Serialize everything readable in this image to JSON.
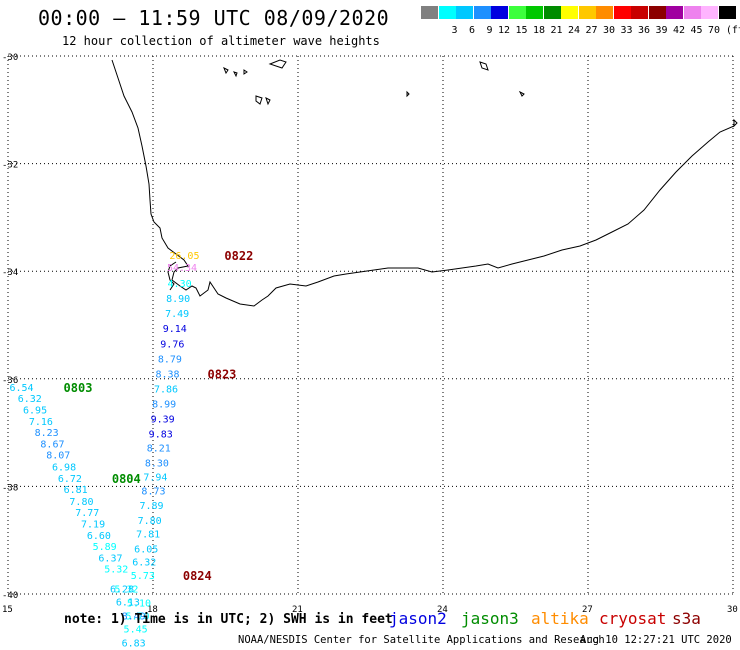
{
  "header": {
    "title": "00:00 – 11:59 UTC 08/09/2020",
    "subtitle": "12 hour collection of altimeter wave heights"
  },
  "legend": {
    "unit": "(ft)",
    "swatches": [
      {
        "color": "#808080",
        "label": ""
      },
      {
        "color": "#00ffff",
        "label": "3"
      },
      {
        "color": "#00c8ff",
        "label": "6"
      },
      {
        "color": "#1e90ff",
        "label": "9"
      },
      {
        "color": "#0000e0",
        "label": "12"
      },
      {
        "color": "#3cff3c",
        "label": "15"
      },
      {
        "color": "#00c800",
        "label": "18"
      },
      {
        "color": "#008c00",
        "label": "21"
      },
      {
        "color": "#ffff00",
        "label": "24"
      },
      {
        "color": "#ffc800",
        "label": "27"
      },
      {
        "color": "#ff8c00",
        "label": "30"
      },
      {
        "color": "#ff0000",
        "label": "33"
      },
      {
        "color": "#c80000",
        "label": "36"
      },
      {
        "color": "#8c0000",
        "label": "39"
      },
      {
        "color": "#a000a0",
        "label": "42"
      },
      {
        "color": "#ee82ee",
        "label": "45"
      },
      {
        "color": "#ffb4ff",
        "label": "70"
      },
      {
        "color": "#000000",
        "label": ""
      }
    ]
  },
  "map": {
    "lon_range": [
      15,
      30
    ],
    "lat_range": [
      -40,
      -30
    ],
    "lon_ticks": [
      15,
      18,
      21,
      24,
      27,
      30
    ],
    "lat_ticks": [
      -30,
      -32,
      -34,
      -36,
      -38,
      -40
    ],
    "lon_labels": [
      "15",
      "18",
      "21",
      "24",
      "27",
      "30"
    ],
    "lat_labels": [
      "-30",
      "-32",
      "-34",
      "-36",
      "-38",
      "-40"
    ],
    "grid": "dotted",
    "region": "South Africa south-west coast"
  },
  "tracks": [
    {
      "satellite": "cryosat",
      "time_label": "0822",
      "label_color": "#8c0000",
      "points": [
        {
          "value": "26.05",
          "color": "#ffc800",
          "lon": 18.65,
          "lat": -33.7
        },
        {
          "value": "54.34",
          "color": "#ee82ee",
          "lon": 18.6,
          "lat": -33.92
        },
        {
          "value": "4.30",
          "color": "#00ffff",
          "lon": 18.55,
          "lat": -34.22
        },
        {
          "value": "8.90",
          "color": "#00c8ff",
          "lon": 18.52,
          "lat": -34.5
        },
        {
          "value": "7.49",
          "color": "#00c8ff",
          "lon": 18.5,
          "lat": -34.78
        },
        {
          "value": "9.14",
          "color": "#0000e0",
          "lon": 18.45,
          "lat": -35.06
        },
        {
          "value": "9.76",
          "color": "#0000e0",
          "lon": 18.4,
          "lat": -35.34
        },
        {
          "value": "8.79",
          "color": "#1e90ff",
          "lon": 18.35,
          "lat": -35.62
        }
      ]
    },
    {
      "satellite": "cryosat",
      "time_label": "0823",
      "label_color": "#8c0000",
      "points": [
        {
          "value": "8.38",
          "color": "#1e90ff",
          "lon": 18.3,
          "lat": -35.9
        },
        {
          "value": "7.86",
          "color": "#00c8ff",
          "lon": 18.27,
          "lat": -36.18
        },
        {
          "value": "8.99",
          "color": "#1e90ff",
          "lon": 18.23,
          "lat": -36.46
        },
        {
          "value": "9.39",
          "color": "#0000e0",
          "lon": 18.2,
          "lat": -36.74
        },
        {
          "value": "9.83",
          "color": "#0000e0",
          "lon": 18.16,
          "lat": -37.02
        },
        {
          "value": "8.21",
          "color": "#1e90ff",
          "lon": 18.12,
          "lat": -37.28
        },
        {
          "value": "8.30",
          "color": "#1e90ff",
          "lon": 18.08,
          "lat": -37.56
        },
        {
          "value": "7.94",
          "color": "#00c8ff",
          "lon": 18.05,
          "lat": -37.82
        },
        {
          "value": "8.73",
          "color": "#1e90ff",
          "lon": 18.01,
          "lat": -38.08
        },
        {
          "value": "7.89",
          "color": "#00c8ff",
          "lon": 17.97,
          "lat": -38.35
        },
        {
          "value": "7.80",
          "color": "#00c8ff",
          "lon": 17.93,
          "lat": -38.62
        },
        {
          "value": "7.81",
          "color": "#00c8ff",
          "lon": 17.9,
          "lat": -38.88
        },
        {
          "value": "6.05",
          "color": "#00c8ff",
          "lon": 17.86,
          "lat": -39.15
        },
        {
          "value": "6.32",
          "color": "#00c8ff",
          "lon": 17.82,
          "lat": -39.4
        }
      ]
    },
    {
      "satellite": "cryosat",
      "time_label": "0824",
      "label_color": "#8c0000",
      "points": [
        {
          "value": "5.73",
          "color": "#00ffff",
          "lon": 17.79,
          "lat": -39.65
        },
        {
          "value": "5.32",
          "color": "#00ffff",
          "lon": 17.45,
          "lat": -39.9
        },
        {
          "value": "5.10",
          "color": "#00ffff",
          "lon": 17.71,
          "lat": -40.16
        },
        {
          "value": "5.70",
          "color": "#00ffff",
          "lon": 17.68,
          "lat": -40.4
        },
        {
          "value": "5.45",
          "color": "#00ffff",
          "lon": 17.64,
          "lat": -40.64
        },
        {
          "value": "6.83",
          "color": "#00c8ff",
          "lon": 17.6,
          "lat": -40.9
        }
      ]
    },
    {
      "satellite": "jason3",
      "time_label": "0803",
      "label_color": "#008c00",
      "points": [
        {
          "value": "6.54",
          "color": "#00c8ff",
          "lon": 15.28,
          "lat": -36.15
        },
        {
          "value": "6.32",
          "color": "#00c8ff",
          "lon": 15.45,
          "lat": -36.36
        },
        {
          "value": "6.95",
          "color": "#00c8ff",
          "lon": 15.56,
          "lat": -36.57
        },
        {
          "value": "7.16",
          "color": "#00c8ff",
          "lon": 15.68,
          "lat": -36.78
        },
        {
          "value": "8.23",
          "color": "#1e90ff",
          "lon": 15.8,
          "lat": -36.99
        },
        {
          "value": "8.67",
          "color": "#1e90ff",
          "lon": 15.92,
          "lat": -37.2
        },
        {
          "value": "8.07",
          "color": "#1e90ff",
          "lon": 16.04,
          "lat": -37.41
        },
        {
          "value": "6.98",
          "color": "#00c8ff",
          "lon": 16.16,
          "lat": -37.63
        }
      ]
    },
    {
      "satellite": "jason3",
      "time_label": "0804",
      "label_color": "#008c00",
      "points": [
        {
          "value": "6.72",
          "color": "#00c8ff",
          "lon": 16.28,
          "lat": -37.84
        },
        {
          "value": "6.81",
          "color": "#00c8ff",
          "lon": 16.4,
          "lat": -38.05
        },
        {
          "value": "7.80",
          "color": "#00c8ff",
          "lon": 16.52,
          "lat": -38.27
        },
        {
          "value": "7.77",
          "color": "#00c8ff",
          "lon": 16.64,
          "lat": -38.48
        },
        {
          "value": "7.19",
          "color": "#00c8ff",
          "lon": 16.76,
          "lat": -38.69
        },
        {
          "value": "6.60",
          "color": "#00c8ff",
          "lon": 16.88,
          "lat": -38.9
        },
        {
          "value": "5.89",
          "color": "#00ffff",
          "lon": 17.0,
          "lat": -39.11
        },
        {
          "value": "6.37",
          "color": "#00c8ff",
          "lon": 17.12,
          "lat": -39.32
        },
        {
          "value": "5.32",
          "color": "#00ffff",
          "lon": 17.24,
          "lat": -39.53
        },
        {
          "value": "6.28",
          "color": "#00c8ff",
          "lon": 17.36,
          "lat": -39.9
        },
        {
          "value": "6.13",
          "color": "#00c8ff",
          "lon": 17.48,
          "lat": -40.14
        },
        {
          "value": "8.49",
          "color": "#1e90ff",
          "lon": 17.6,
          "lat": -40.4
        }
      ]
    }
  ],
  "note": "note: 1) Time is in UTC; 2) SWH is in feet",
  "satellites": [
    {
      "name": "jason2",
      "color": "#0000e0"
    },
    {
      "name": "jason3",
      "color": "#008c00"
    },
    {
      "name": "altika",
      "color": "#ff8c00"
    },
    {
      "name": "cryosat",
      "color": "#c80000"
    },
    {
      "name": "s3a",
      "color": "#8c0000"
    }
  ],
  "credit": "NOAA/NESDIS Center for Satellite Applications and Research",
  "generated": "Aug 10 12:27:21 UTC 2020"
}
